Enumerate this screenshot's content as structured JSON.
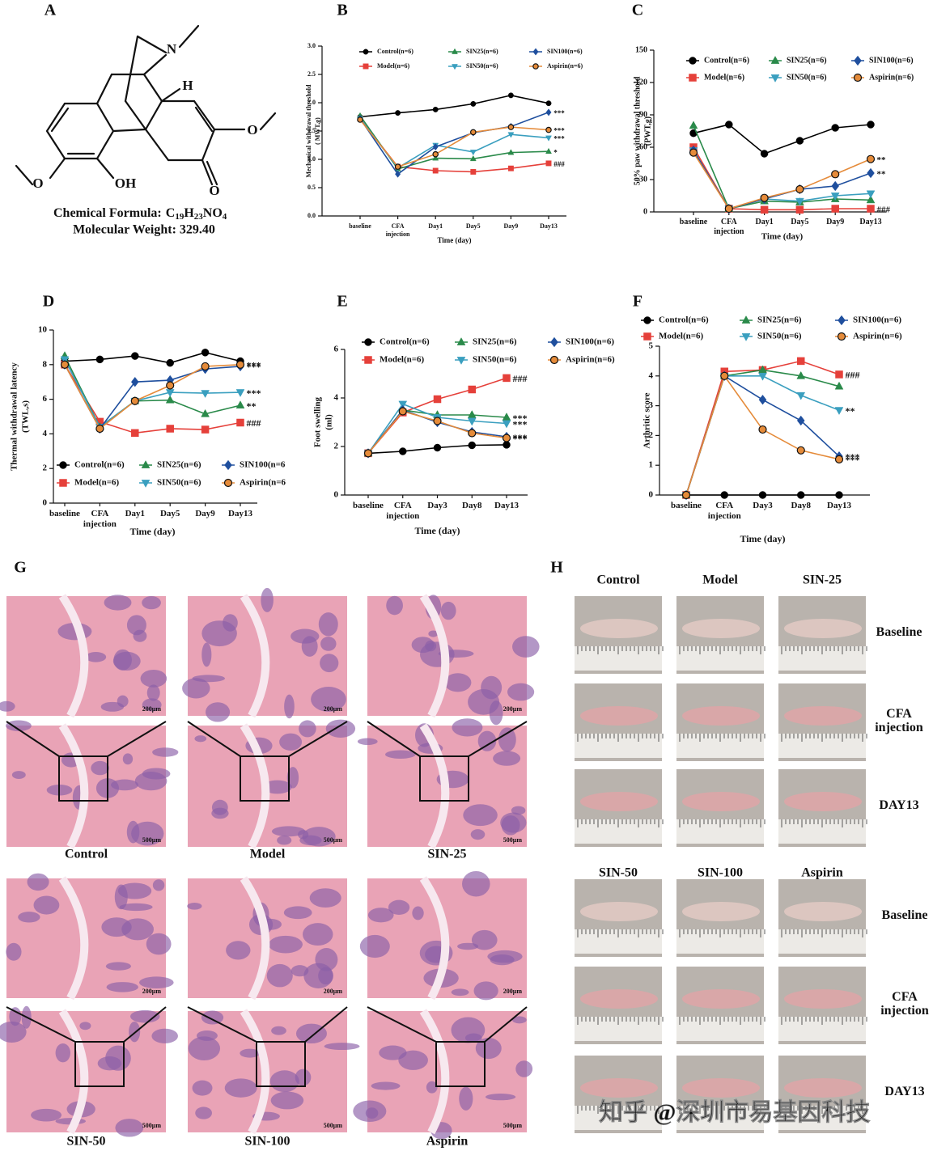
{
  "panel_a": {
    "letter": "A",
    "atoms": [
      "N",
      "H",
      "OH",
      "O"
    ],
    "formula_label": "Chemical Formula:",
    "formula": [
      "C",
      "19",
      "H",
      "23",
      "NO",
      "4"
    ],
    "molecular_weight": "Molecular Weight: 329.40"
  },
  "chart_data": [
    {
      "type": "line",
      "panel": "B",
      "categories": [
        "baseline",
        "CFA injection",
        "Day1",
        "Day5",
        "Day9",
        "Day13"
      ],
      "xlabel": "Time (day)",
      "ylabel": [
        "Mechanical withdrawal threshold",
        "( MWT,g)"
      ],
      "ylim": [
        0,
        3
      ],
      "yticks": [
        {
          "value": 0,
          "label": "0.0"
        },
        0.5,
        {
          "value": 1,
          "label": "1.0"
        },
        1.5,
        {
          "value": 2,
          "label": "2.0"
        },
        2.5,
        {
          "value": 3,
          "label": "3.0"
        }
      ],
      "series": [
        {
          "name": "Control(n=6)",
          "color": "#000000",
          "marker": "circle",
          "values": [
            1.75,
            1.82,
            1.88,
            1.98,
            2.13,
            1.99
          ]
        },
        {
          "name": "Model(n=6)",
          "color": "#e5403a",
          "marker": "square",
          "values": [
            1.72,
            0.87,
            0.8,
            0.78,
            0.84,
            0.93
          ],
          "annotation": "###"
        },
        {
          "name": "SIN25(n=6)",
          "color": "#2a8a4a",
          "marker": "triangle-up",
          "values": [
            1.77,
            0.83,
            1.02,
            1.01,
            1.12,
            1.14
          ],
          "annotation": "*"
        },
        {
          "name": "SIN50(n=6)",
          "color": "#3a9fbf",
          "marker": "triangle-down",
          "values": [
            1.72,
            0.85,
            1.25,
            1.13,
            1.44,
            1.38
          ],
          "annotation": "***"
        },
        {
          "name": "SIN100(n=6)",
          "color": "#1f4f9e",
          "marker": "diamond",
          "values": [
            1.72,
            0.74,
            1.22,
            1.47,
            1.58,
            1.83
          ],
          "annotation": "***"
        },
        {
          "name": "Aspirin(n=6)",
          "color": "#e58b3a",
          "marker": "circle",
          "values": [
            1.7,
            0.87,
            1.09,
            1.48,
            1.57,
            1.52
          ],
          "annotation": "***"
        }
      ]
    },
    {
      "type": "line",
      "panel": "C",
      "categories": [
        "baseline",
        "CFA injection",
        "Day1",
        "Day5",
        "Day9",
        "Day13"
      ],
      "xlabel": "Time (day)",
      "ylabel": [
        "50% paw withdrawal threshold",
        "(PWT,g)"
      ],
      "ylim": [
        0,
        150
      ],
      "yticks": [
        0,
        30,
        60,
        90,
        120,
        150
      ],
      "series": [
        {
          "name": "Control(n=6)",
          "color": "#000000",
          "marker": "circle",
          "values": [
            73,
            81,
            54,
            66,
            78,
            81
          ]
        },
        {
          "name": "Model(n=6)",
          "color": "#e5403a",
          "marker": "square",
          "values": [
            60,
            3,
            2,
            2,
            3,
            3
          ],
          "annotation": "###"
        },
        {
          "name": "SIN25(n=6)",
          "color": "#2a8a4a",
          "marker": "triangle-up",
          "values": [
            80,
            3,
            10,
            9,
            12,
            11
          ]
        },
        {
          "name": "SIN50(n=6)",
          "color": "#3a9fbf",
          "marker": "triangle-down",
          "values": [
            57,
            3,
            12,
            10,
            15,
            17
          ]
        },
        {
          "name": "SIN100(n=6)",
          "color": "#1f4f9e",
          "marker": "diamond",
          "values": [
            57,
            3,
            12,
            21,
            24,
            36
          ],
          "annotation": "**"
        },
        {
          "name": "Aspirin(n=6)",
          "color": "#e58b3a",
          "marker": "circle",
          "values": [
            55,
            3,
            13,
            21,
            35,
            49
          ],
          "annotation": "**"
        }
      ]
    },
    {
      "type": "line",
      "panel": "D",
      "categories": [
        "baseline",
        "CFA injection",
        "Day1",
        "Day5",
        "Day9",
        "Day13"
      ],
      "xlabel": "Time (day)",
      "ylabel": [
        "Thermal withdrawal latency",
        "(TWL,s)"
      ],
      "ylim": [
        0,
        10
      ],
      "yticks": [
        0,
        2,
        4,
        6,
        8,
        10
      ],
      "series": [
        {
          "name": "Control(n=6)",
          "color": "#000000",
          "marker": "circle",
          "values": [
            8.2,
            8.3,
            8.5,
            8.1,
            8.7,
            8.2
          ]
        },
        {
          "name": "Model(n=6)",
          "color": "#e5403a",
          "marker": "square",
          "values": [
            8,
            4.7,
            4.05,
            4.3,
            4.25,
            4.65
          ],
          "annotation": "###"
        },
        {
          "name": "SIN25(n=6)",
          "color": "#2a8a4a",
          "marker": "triangle-up",
          "values": [
            8.5,
            4.4,
            5.9,
            5.95,
            5.15,
            5.65
          ],
          "annotation": "**"
        },
        {
          "name": "SIN50(n=6)",
          "color": "#3a9fbf",
          "marker": "triangle-down",
          "values": [
            8.3,
            4.4,
            5.9,
            6.4,
            6.35,
            6.4
          ],
          "annotation": "***"
        },
        {
          "name": "SIN100(n=6",
          "color": "#1f4f9e",
          "marker": "diamond",
          "values": [
            8,
            4.3,
            7,
            7.1,
            7.75,
            7.9
          ],
          "annotation": "***"
        },
        {
          "name": "Aspirin(n=6",
          "color": "#e58b3a",
          "marker": "circle",
          "values": [
            8,
            4.3,
            5.9,
            6.8,
            7.9,
            8
          ],
          "annotation": "***"
        }
      ]
    },
    {
      "type": "line",
      "panel": "E",
      "categories": [
        "baseline",
        "CFA injection",
        "Day3",
        "Day8",
        "Day13"
      ],
      "xlabel": "Time (day)",
      "ylabel": [
        "Foot swelling",
        "(ml)"
      ],
      "ylim": [
        0,
        6
      ],
      "yticks": [
        0,
        2,
        4,
        6
      ],
      "series": [
        {
          "name": "Control(n=6)",
          "color": "#000000",
          "marker": "circle",
          "values": [
            1.72,
            1.8,
            1.95,
            2.05,
            2.07
          ]
        },
        {
          "name": "Model(n=6)",
          "color": "#e5403a",
          "marker": "square",
          "values": [
            1.72,
            3.4,
            3.95,
            4.35,
            4.82
          ],
          "annotation": "###"
        },
        {
          "name": "SIN25(n=6)",
          "color": "#2a8a4a",
          "marker": "triangle-up",
          "values": [
            1.72,
            3.5,
            3.3,
            3.3,
            3.2
          ],
          "annotation": "***"
        },
        {
          "name": "SIN50(n=6)",
          "color": "#3a9fbf",
          "marker": "triangle-down",
          "values": [
            1.72,
            3.75,
            3.2,
            3.05,
            2.95
          ],
          "annotation": "***"
        },
        {
          "name": "SIN100(n=6)",
          "color": "#1f4f9e",
          "marker": "diamond",
          "values": [
            1.72,
            3.5,
            3,
            2.6,
            2.4
          ],
          "annotation": "***"
        },
        {
          "name": "Aspirin(n=6)",
          "color": "#e58b3a",
          "marker": "circle",
          "values": [
            1.72,
            3.45,
            3.05,
            2.55,
            2.35
          ],
          "annotation": "***"
        }
      ]
    },
    {
      "type": "line",
      "panel": "F",
      "categories": [
        "baseline",
        "CFA injection",
        "Day3",
        "Day8",
        "Day13"
      ],
      "xlabel": "Time (day)",
      "ylabel": [
        "Arthritic score"
      ],
      "ylim": [
        0,
        5
      ],
      "yticks": [
        0,
        1,
        2,
        3,
        4,
        5
      ],
      "series": [
        {
          "name": "Control(n=6)",
          "color": "#000000",
          "marker": "circle",
          "values": [
            0,
            0,
            0,
            0,
            0
          ]
        },
        {
          "name": "Model(n=6)",
          "color": "#e5403a",
          "marker": "square",
          "values": [
            0,
            4.15,
            4.2,
            4.5,
            4.05
          ],
          "annotation": "###"
        },
        {
          "name": "SIN25(n=6)",
          "color": "#2a8a4a",
          "marker": "triangle-up",
          "values": [
            0,
            4,
            4.2,
            4,
            3.65
          ]
        },
        {
          "name": "SIN50(n=6)",
          "color": "#3a9fbf",
          "marker": "triangle-down",
          "values": [
            0,
            4,
            4,
            3.35,
            2.85
          ],
          "annotation": "**"
        },
        {
          "name": "SIN100(n=6)",
          "color": "#1f4f9e",
          "marker": "diamond",
          "values": [
            0,
            4,
            3.2,
            2.5,
            1.3
          ],
          "annotation": "***"
        },
        {
          "name": "Aspirin(n=6)",
          "color": "#e58b3a",
          "marker": "circle",
          "values": [
            0,
            4,
            2.2,
            1.5,
            1.2
          ],
          "annotation": "***"
        }
      ]
    }
  ],
  "panel_g": {
    "letter": "G",
    "groups": [
      "Control",
      "Model",
      "SIN-25",
      "SIN-50",
      "SIN-100",
      "Aspirin"
    ],
    "scale_top": "200μm",
    "scale_bottom": "500μm"
  },
  "panel_h": {
    "letter": "H",
    "groups": [
      "Control",
      "Model",
      "SIN-25",
      "SIN-50",
      "SIN-100",
      "Aspirin"
    ],
    "rows": [
      "Baseline",
      "CFA injection",
      "DAY13"
    ]
  },
  "watermark": "知乎 @深圳市易基因科技"
}
